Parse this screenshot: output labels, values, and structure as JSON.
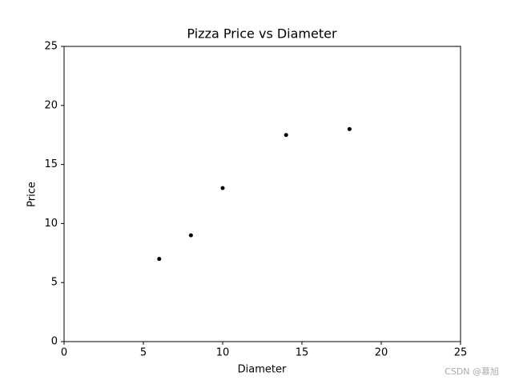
{
  "chart_data": {
    "type": "scatter",
    "title": "Pizza Price vs Diameter",
    "x_label": "Diameter",
    "y_label": "Price",
    "x": [
      6,
      8,
      10,
      14,
      18
    ],
    "values": [
      7,
      9,
      13,
      17.5,
      18
    ],
    "color": "#000000",
    "xlim": [
      0,
      25
    ],
    "ylim": [
      0,
      25
    ],
    "xticks": [
      0,
      5,
      10,
      15,
      20,
      25
    ],
    "yticks": [
      0,
      5,
      10,
      15,
      20,
      25
    ],
    "grid": false,
    "watermark": "CSDN @慕旭"
  }
}
